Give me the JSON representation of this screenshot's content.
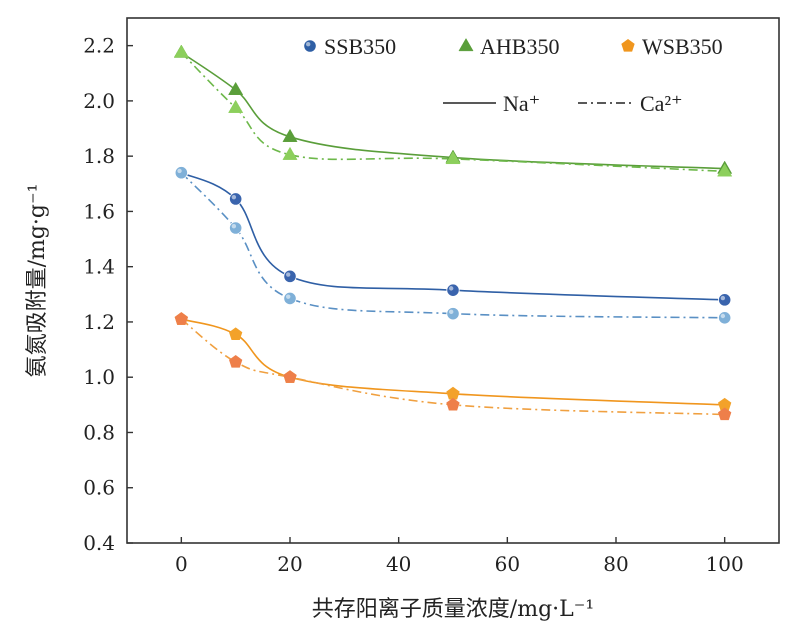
{
  "chart_data": {
    "type": "line",
    "xlabel": "共存阳离子质量浓度/mg·L⁻¹",
    "ylabel": "氨氮吸附量/mg·g⁻¹",
    "xlim": [
      -10,
      110
    ],
    "ylim": [
      0.4,
      2.3
    ],
    "xticks": [
      0,
      20,
      40,
      60,
      80,
      100
    ],
    "xtick_labels": [
      "0",
      "20",
      "40",
      "60",
      "80",
      "100"
    ],
    "yticks": [
      0.4,
      0.6,
      0.8,
      1.0,
      1.2,
      1.4,
      1.6,
      1.8,
      2.0,
      2.2
    ],
    "ytick_labels": [
      "0.4",
      "0.6",
      "0.8",
      "1.0",
      "1.2",
      "1.4",
      "1.6",
      "1.8",
      "2.0",
      "2.2"
    ],
    "grid": false,
    "legend_position": "top-right",
    "legend_materials": [
      {
        "label": "SSB350",
        "marker": "circle",
        "color": "#2f5fa5"
      },
      {
        "label": "AHB350",
        "marker": "triangle",
        "color": "#5a9e3a"
      },
      {
        "label": "WSB350",
        "marker": "pentagon",
        "color": "#f0961e"
      }
    ],
    "legend_lines": [
      {
        "label": "Na⁺",
        "style": "solid"
      },
      {
        "label": "Ca²⁺",
        "style": "dash-dot"
      }
    ],
    "series": [
      {
        "material": "SSB350",
        "ion": "Na+",
        "style": "solid",
        "marker": "circle",
        "color": "#2f5fa5",
        "marker_color": "#3a64ad",
        "x": [
          0,
          10,
          20,
          50,
          100
        ],
        "y": [
          1.74,
          1.645,
          1.365,
          1.315,
          1.28
        ]
      },
      {
        "material": "SSB350",
        "ion": "Ca2+",
        "style": "dash-dot",
        "marker": "circle",
        "color": "#5a90c4",
        "marker_color": "#7fb0d8",
        "x": [
          0,
          10,
          20,
          50,
          100
        ],
        "y": [
          1.74,
          1.54,
          1.285,
          1.23,
          1.215
        ]
      },
      {
        "material": "AHB350",
        "ion": "Na+",
        "style": "solid",
        "marker": "triangle",
        "color": "#5a9e3a",
        "marker_color": "#5a9e3a",
        "x": [
          0,
          10,
          20,
          50,
          100
        ],
        "y": [
          2.175,
          2.04,
          1.87,
          1.795,
          1.755
        ]
      },
      {
        "material": "AHB350",
        "ion": "Ca2+",
        "style": "dash-dot",
        "marker": "triangle",
        "color": "#6db84a",
        "marker_color": "#8ccf5c",
        "x": [
          0,
          10,
          20,
          50,
          100
        ],
        "y": [
          2.175,
          1.975,
          1.805,
          1.79,
          1.745
        ]
      },
      {
        "material": "WSB350",
        "ion": "Na+",
        "style": "solid",
        "marker": "pentagon",
        "color": "#f0961e",
        "marker_color": "#f3a22a",
        "x": [
          0,
          10,
          20,
          50,
          100
        ],
        "y": [
          1.21,
          1.155,
          1.0,
          0.94,
          0.9
        ]
      },
      {
        "material": "WSB350",
        "ion": "Ca2+",
        "style": "dash-dot",
        "marker": "pentagon",
        "color": "#f0a040",
        "marker_color": "#ee7f4a",
        "x": [
          0,
          10,
          20,
          50,
          100
        ],
        "y": [
          1.21,
          1.055,
          1.0,
          0.9,
          0.865
        ]
      }
    ]
  }
}
